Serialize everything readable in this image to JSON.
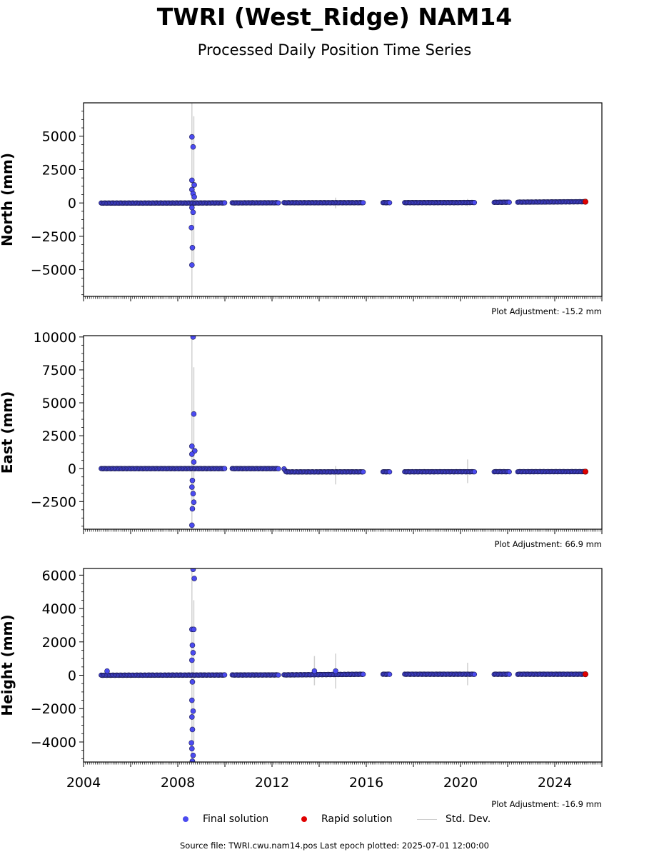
{
  "title": "TWRI (West_Ridge) NAM14",
  "subtitle": "Processed Daily Position Time Series",
  "colors": {
    "final": "#4b4bf0",
    "final_edge": "#1a1a50",
    "rapid": "#e00000",
    "stddev": "#d0d0d0"
  },
  "legend": {
    "final": "Final solution",
    "rapid": "Rapid solution",
    "stddev": "Std. Dev."
  },
  "footer": "Source file: TWRI.cwu.nam14.pos  Last epoch plotted: 2025-07-01 12:00:00",
  "chart_data": [
    {
      "type": "scatter",
      "ylabel": "North (mm)",
      "xlim": [
        2004.0,
        2026.0
      ],
      "ylim": [
        -7000,
        7500
      ],
      "yticks": [
        -5000,
        -2500,
        0,
        2500,
        5000
      ],
      "ytick_labels": [
        "−5000",
        "−2500",
        "0",
        "2500",
        "5000"
      ],
      "adjustment": "Plot Adjustment: -15.2 mm",
      "show_xtick_labels": false,
      "baseline": [
        [
          2004.8,
          -10
        ],
        [
          2008.5,
          -5
        ],
        [
          2012.5,
          15
        ],
        [
          2016.0,
          20
        ],
        [
          2020.0,
          25
        ],
        [
          2022.5,
          60
        ],
        [
          2025.3,
          90
        ]
      ],
      "outliers": [
        {
          "x": 2008.6,
          "y": 4950
        },
        {
          "x": 2008.65,
          "y": 4200
        },
        {
          "x": 2008.6,
          "y": 1700
        },
        {
          "x": 2008.7,
          "y": 1350
        },
        {
          "x": 2008.6,
          "y": 1000
        },
        {
          "x": 2008.65,
          "y": 700
        },
        {
          "x": 2008.7,
          "y": 450
        },
        {
          "x": 2008.6,
          "y": -350
        },
        {
          "x": 2008.65,
          "y": -700
        },
        {
          "x": 2008.58,
          "y": -1850
        },
        {
          "x": 2008.62,
          "y": -3350
        },
        {
          "x": 2008.6,
          "y": -4650
        }
      ],
      "stddev_bars": [
        {
          "x": 2008.6,
          "lo": -7000,
          "hi": 7500
        },
        {
          "x": 2008.68,
          "lo": -4500,
          "hi": 6500
        },
        {
          "x": 2014.7,
          "lo": -400,
          "hi": 400
        },
        {
          "x": 2020.3,
          "lo": -250,
          "hi": 300
        }
      ],
      "rapid": {
        "x": 2025.3,
        "y": 90
      }
    },
    {
      "type": "scatter",
      "ylabel": "East (mm)",
      "xlim": [
        2004.0,
        2026.0
      ],
      "ylim": [
        -4600,
        10100
      ],
      "yticks": [
        -2500,
        0,
        2500,
        5000,
        7500,
        10000
      ],
      "ytick_labels": [
        "−2500",
        "0",
        "2500",
        "5000",
        "7500",
        "10000"
      ],
      "adjustment": "Plot Adjustment: 66.9 mm",
      "show_xtick_labels": false,
      "baseline": [
        [
          2004.8,
          0
        ],
        [
          2012.5,
          0
        ],
        [
          2012.6,
          -250
        ],
        [
          2025.3,
          -230
        ]
      ],
      "outliers": [
        {
          "x": 2008.65,
          "y": 10000
        },
        {
          "x": 2008.68,
          "y": 4150
        },
        {
          "x": 2008.6,
          "y": 1700
        },
        {
          "x": 2008.72,
          "y": 1350
        },
        {
          "x": 2008.6,
          "y": 1100
        },
        {
          "x": 2008.68,
          "y": 500
        },
        {
          "x": 2008.62,
          "y": -900
        },
        {
          "x": 2008.6,
          "y": -1400
        },
        {
          "x": 2008.65,
          "y": -1900
        },
        {
          "x": 2008.68,
          "y": -2550
        },
        {
          "x": 2008.62,
          "y": -3050
        },
        {
          "x": 2008.6,
          "y": -4300
        }
      ],
      "stddev_bars": [
        {
          "x": 2008.6,
          "lo": -4600,
          "hi": 10100
        },
        {
          "x": 2008.68,
          "lo": -3000,
          "hi": 7700
        },
        {
          "x": 2014.7,
          "lo": -1200,
          "hi": 200
        },
        {
          "x": 2020.3,
          "lo": -1100,
          "hi": 700
        }
      ],
      "rapid": {
        "x": 2025.3,
        "y": -230
      }
    },
    {
      "type": "scatter",
      "ylabel": "Height (mm)",
      "xlim": [
        2004.0,
        2026.0
      ],
      "ylim": [
        -5200,
        6400
      ],
      "yticks": [
        -4000,
        -2000,
        0,
        2000,
        4000,
        6000
      ],
      "ytick_labels": [
        "−4000",
        "−2000",
        "0",
        "2000",
        "4000",
        "6000"
      ],
      "adjustment": "Plot Adjustment: -16.9 mm",
      "show_xtick_labels": true,
      "xticks": [
        2004,
        2008,
        2012,
        2016,
        2020,
        2024
      ],
      "baseline": [
        [
          2004.8,
          0
        ],
        [
          2012.5,
          20
        ],
        [
          2016.0,
          60
        ],
        [
          2025.3,
          60
        ]
      ],
      "outliers": [
        {
          "x": 2008.65,
          "y": 6350
        },
        {
          "x": 2008.7,
          "y": 5800
        },
        {
          "x": 2008.6,
          "y": 2750
        },
        {
          "x": 2008.68,
          "y": 2750
        },
        {
          "x": 2008.62,
          "y": 1800
        },
        {
          "x": 2008.65,
          "y": 1350
        },
        {
          "x": 2008.6,
          "y": 900
        },
        {
          "x": 2008.62,
          "y": -400
        },
        {
          "x": 2008.6,
          "y": -1500
        },
        {
          "x": 2008.65,
          "y": -2150
        },
        {
          "x": 2008.6,
          "y": -2500
        },
        {
          "x": 2008.62,
          "y": -3250
        },
        {
          "x": 2008.58,
          "y": -4050
        },
        {
          "x": 2008.6,
          "y": -4400
        },
        {
          "x": 2008.65,
          "y": -4800
        },
        {
          "x": 2008.62,
          "y": -5150
        },
        {
          "x": 2005.0,
          "y": 250
        },
        {
          "x": 2013.8,
          "y": 250
        },
        {
          "x": 2014.7,
          "y": 250
        }
      ],
      "stddev_bars": [
        {
          "x": 2008.6,
          "lo": -5200,
          "hi": 6400
        },
        {
          "x": 2008.68,
          "lo": -4000,
          "hi": 4500
        },
        {
          "x": 2013.8,
          "lo": -600,
          "hi": 1150
        },
        {
          "x": 2014.7,
          "lo": -800,
          "hi": 1300
        },
        {
          "x": 2020.3,
          "lo": -600,
          "hi": 750
        }
      ],
      "rapid": {
        "x": 2025.3,
        "y": 60
      }
    }
  ]
}
